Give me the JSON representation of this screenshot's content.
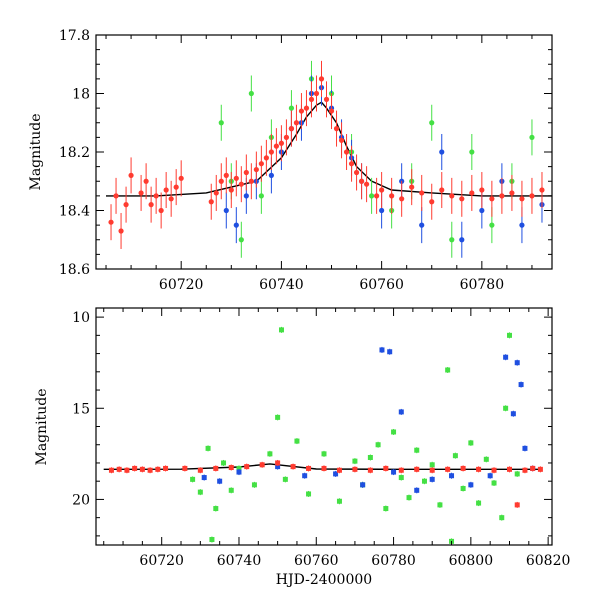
{
  "chart_data": [
    {
      "type": "scatter",
      "title": "",
      "xlabel": "",
      "ylabel": "Magnitude",
      "xlim": [
        60703,
        60794
      ],
      "ylim": [
        18.6,
        17.8
      ],
      "y_inverted": true,
      "xticks": [
        60720,
        60740,
        60760,
        60780
      ],
      "yticks": [
        17.8,
        18,
        18.2,
        18.4,
        18.6
      ],
      "xtick_labels": [
        "60720",
        "60740",
        "60760",
        "60780"
      ],
      "ytick_labels": [
        "17.8",
        "18",
        "18.2",
        "18.4",
        "18.6"
      ],
      "colors": {
        "red": "#ff3b30",
        "blue": "#1f4fe0",
        "green": "#44e044",
        "curve": "#000000"
      },
      "model_curve": {
        "x": [
          60705,
          60715,
          60725,
          60730,
          60735,
          60740,
          60743,
          60745,
          60747,
          60748,
          60749,
          60751,
          60753,
          60755,
          60758,
          60762,
          60770,
          60780,
          60794
        ],
        "y": [
          18.35,
          18.35,
          18.34,
          18.32,
          18.3,
          18.22,
          18.14,
          18.08,
          18.04,
          18.03,
          18.05,
          18.1,
          18.18,
          18.25,
          18.3,
          18.33,
          18.34,
          18.35,
          18.35
        ]
      },
      "series": [
        {
          "color": "red",
          "note": "dense red points follow model",
          "x": [
            60706,
            60707,
            60708,
            60709,
            60710,
            60712,
            60713,
            60714,
            60715,
            60716,
            60717,
            60718,
            60719,
            60720,
            60726,
            60727,
            60728,
            60729,
            60730,
            60731,
            60732,
            60733,
            60734,
            60735,
            60736,
            60737,
            60738,
            60739,
            60740,
            60741,
            60742,
            60743,
            60744,
            60745,
            60746,
            60747,
            60748,
            60749,
            60750,
            60751,
            60752,
            60753,
            60754,
            60755,
            60756,
            60757,
            60759,
            60760,
            60762,
            60764,
            60766,
            60768,
            60770,
            60772,
            60774,
            60776,
            60778,
            60780,
            60782,
            60784,
            60786,
            60788,
            60790,
            60792
          ],
          "y": [
            18.44,
            18.35,
            18.47,
            18.38,
            18.28,
            18.34,
            18.3,
            18.38,
            18.35,
            18.4,
            18.33,
            18.36,
            18.32,
            18.29,
            18.37,
            18.34,
            18.3,
            18.28,
            18.33,
            18.29,
            18.31,
            18.27,
            18.3,
            18.26,
            18.24,
            18.22,
            18.2,
            18.18,
            18.17,
            18.15,
            18.12,
            18.1,
            18.06,
            18.05,
            18.02,
            18.0,
            17.95,
            18.02,
            18.06,
            18.12,
            18.16,
            18.2,
            18.24,
            18.27,
            18.3,
            18.31,
            18.35,
            18.33,
            18.35,
            18.36,
            18.32,
            18.34,
            18.37,
            18.33,
            18.35,
            18.36,
            18.34,
            18.33,
            18.36,
            18.35,
            18.34,
            18.36,
            18.35,
            18.33
          ]
        },
        {
          "color": "blue",
          "x": [
            60729,
            60731,
            60733,
            60735,
            60738,
            60740,
            60742,
            60744,
            60746,
            60748,
            60750,
            60752,
            60754,
            60756,
            60760,
            60764,
            60768,
            60772,
            60776,
            60780,
            60784,
            60788,
            60792
          ],
          "y": [
            18.4,
            18.45,
            18.35,
            18.3,
            18.28,
            18.2,
            18.12,
            18.1,
            18.0,
            17.98,
            18.05,
            18.15,
            18.22,
            18.3,
            18.4,
            18.3,
            18.45,
            18.2,
            18.5,
            18.4,
            18.3,
            18.45,
            18.38
          ]
        },
        {
          "color": "green",
          "x": [
            60728,
            60730,
            60732,
            60734,
            60736,
            60738,
            60742,
            60746,
            60750,
            60754,
            60758,
            60762,
            60766,
            60770,
            60774,
            60778,
            60782,
            60786,
            60790
          ],
          "y": [
            18.1,
            18.3,
            18.5,
            18.0,
            18.35,
            18.15,
            18.05,
            17.95,
            18.0,
            18.2,
            18.35,
            18.4,
            18.3,
            18.1,
            18.5,
            18.2,
            18.45,
            18.3,
            18.15
          ]
        }
      ]
    },
    {
      "type": "scatter",
      "title": "",
      "xlabel": "HJD-2400000",
      "ylabel": "Magnitude",
      "xlim": [
        60703,
        60821
      ],
      "ylim": [
        22.5,
        9.5
      ],
      "y_inverted": true,
      "xticks": [
        60720,
        60740,
        60760,
        60780,
        60800,
        60820
      ],
      "yticks": [
        10,
        15,
        20
      ],
      "xtick_labels": [
        "60720",
        "60740",
        "60760",
        "60780",
        "60800",
        "60820"
      ],
      "ytick_labels": [
        "10",
        "15",
        "20"
      ],
      "colors": {
        "red": "#ff3b30",
        "blue": "#1f4fe0",
        "green": "#44e044",
        "curve": "#000000"
      },
      "model_curve": {
        "x": [
          60705,
          60725,
          60740,
          60748,
          60760,
          60780,
          60800,
          60818
        ],
        "y": [
          18.35,
          18.34,
          18.22,
          18.05,
          18.33,
          18.35,
          18.35,
          18.35
        ]
      },
      "series": [
        {
          "color": "red",
          "x": [
            60707,
            60709,
            60711,
            60713,
            60715,
            60717,
            60719,
            60721,
            60726,
            60730,
            60734,
            60738,
            60742,
            60746,
            60750,
            60754,
            60758,
            60762,
            60766,
            60770,
            60774,
            60778,
            60782,
            60786,
            60790,
            60794,
            60798,
            60802,
            60806,
            60810,
            60812,
            60814,
            60816,
            60818
          ],
          "y": [
            18.4,
            18.35,
            18.4,
            18.3,
            18.35,
            18.4,
            18.35,
            18.3,
            18.3,
            18.4,
            18.3,
            18.25,
            18.2,
            18.1,
            18.0,
            18.2,
            18.3,
            18.3,
            18.4,
            18.35,
            18.4,
            18.3,
            18.4,
            18.35,
            18.4,
            18.35,
            18.3,
            18.35,
            18.4,
            18.35,
            20.3,
            18.4,
            18.3,
            18.35
          ]
        },
        {
          "color": "blue",
          "x": [
            60731,
            60735,
            60740,
            60750,
            60757,
            60765,
            60772,
            60777,
            60779,
            60780,
            60782,
            60786,
            60790,
            60795,
            60800,
            60805,
            60809,
            60811,
            60812,
            60813,
            60814,
            60816
          ],
          "y": [
            18.8,
            19.0,
            18.5,
            18.2,
            18.7,
            18.6,
            19.2,
            11.8,
            11.9,
            18.5,
            15.2,
            19.5,
            18.9,
            18.7,
            19.2,
            18.7,
            12.2,
            15.3,
            12.5,
            13.7,
            17.2,
            18.3
          ]
        },
        {
          "color": "green",
          "x": [
            60728,
            60730,
            60732,
            60733,
            60734,
            60736,
            60738,
            60740,
            60744,
            60748,
            60750,
            60751,
            60752,
            60755,
            60758,
            60762,
            60766,
            60770,
            60772,
            60774,
            60776,
            60778,
            60780,
            60782,
            60784,
            60786,
            60788,
            60790,
            60792,
            60794,
            60795,
            60796,
            60798,
            60800,
            60802,
            60804,
            60806,
            60808,
            60809,
            60810,
            60812
          ],
          "y": [
            18.9,
            19.6,
            17.2,
            22.2,
            20.5,
            18.0,
            19.5,
            18.3,
            19.2,
            17.5,
            15.5,
            10.7,
            18.9,
            16.8,
            19.7,
            17.5,
            20.1,
            17.9,
            19.2,
            17.7,
            17.0,
            20.5,
            16.3,
            18.8,
            19.9,
            17.3,
            19.0,
            18.1,
            20.3,
            12.9,
            22.3,
            17.6,
            19.4,
            16.9,
            20.2,
            17.8,
            19.1,
            21.0,
            15.0,
            11.0,
            18.6
          ]
        }
      ]
    }
  ]
}
